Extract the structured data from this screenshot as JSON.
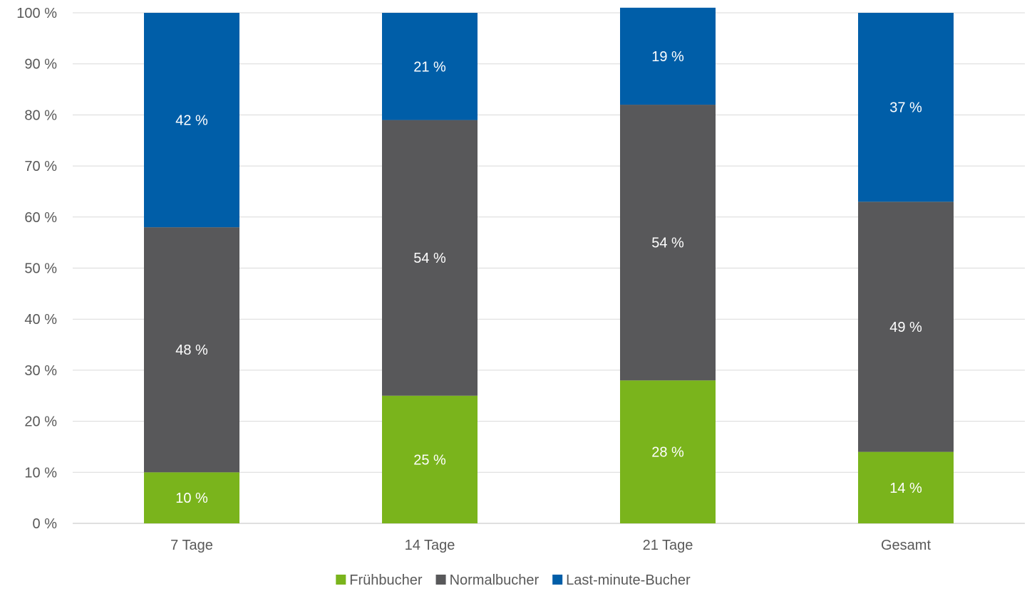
{
  "chart_data": {
    "type": "bar",
    "stacked": true,
    "categories": [
      "7 Tage",
      "14 Tage",
      "21 Tage",
      "Gesamt"
    ],
    "series": [
      {
        "name": "Frühbucher",
        "color": "#7ab41c",
        "values": [
          10,
          25,
          28,
          14
        ],
        "labels": [
          "10 %",
          "25 %",
          "28 %",
          "14 %"
        ]
      },
      {
        "name": "Normalbucher",
        "color": "#58585a",
        "values": [
          48,
          54,
          54,
          49
        ],
        "labels": [
          "48 %",
          "54 %",
          "54 %",
          "49 %"
        ]
      },
      {
        "name": "Last-minute-Bucher",
        "color": "#005ea8",
        "values": [
          42,
          21,
          19,
          37
        ],
        "labels": [
          "42 %",
          "21 %",
          "19 %",
          "37 %"
        ]
      }
    ],
    "ylim": [
      0,
      100
    ],
    "yticks": [
      "0 %",
      "10 %",
      "20 %",
      "30 %",
      "40 %",
      "50 %",
      "60 %",
      "70 %",
      "80 %",
      "90 %",
      "100 %"
    ],
    "grid": true,
    "legend_position": "bottom",
    "title": "",
    "xlabel": "",
    "ylabel": ""
  }
}
